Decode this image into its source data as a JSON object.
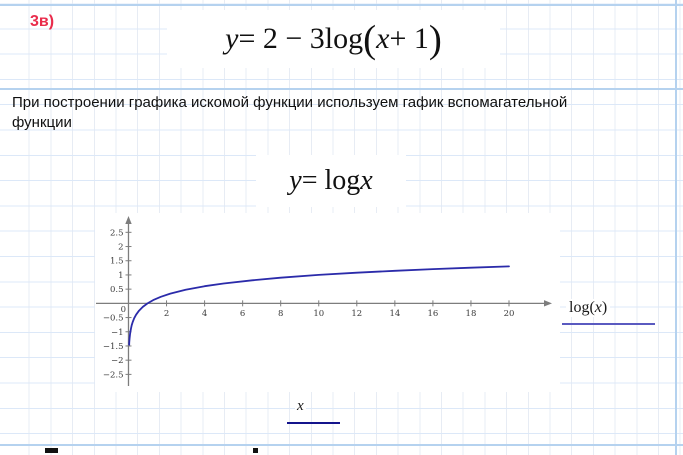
{
  "page": {
    "exercise_label": "3в)",
    "exercise_label_color": "#e92c4c",
    "paragraph": "При построении графика искомой функции используем гафик вспомагательной функции",
    "grid_strong_color": "#b5d2ef"
  },
  "formulas": {
    "main": [
      {
        "t": "y",
        "i": true
      },
      {
        "t": " = 2 − 3log"
      },
      {
        "t": "(",
        "big": true
      },
      {
        "t": "x",
        "i": true
      },
      {
        "t": " + 1"
      },
      {
        "t": ")",
        "big": true
      }
    ],
    "aux": [
      {
        "t": "y",
        "i": true
      },
      {
        "t": " = log "
      },
      {
        "t": "x",
        "i": true
      }
    ]
  },
  "legend": {
    "parts": [
      {
        "t": "log("
      },
      {
        "t": "x",
        "i": true
      },
      {
        "t": ")"
      }
    ],
    "underline_color": "#5a5ac0"
  },
  "x_axis_label": {
    "parts": [
      {
        "t": "x",
        "i": true
      }
    ],
    "underline_color": "#14148c"
  },
  "chart_data": {
    "type": "line",
    "title": "",
    "xlabel": "x",
    "ylabel": "",
    "legend_entry": "log(x)",
    "function": "y = log10(x)",
    "xlim": [
      -1.76,
      22.68
    ],
    "ylim": [
      -3.12,
      3.18
    ],
    "x_ticks": [
      2,
      4,
      6,
      8,
      10,
      12,
      14,
      16,
      18,
      20
    ],
    "y_ticks": [
      2.5,
      2,
      1.5,
      1,
      0.5,
      0,
      -0.5,
      -1,
      -1.5,
      -2,
      -2.5
    ],
    "grid": false,
    "axis_color": "#7d7d7d",
    "curve_color": "#2b2baa",
    "series": [
      {
        "name": "log(x)",
        "points": [
          [
            0.035,
            -1.456
          ],
          [
            0.04,
            -1.398
          ],
          [
            0.06,
            -1.222
          ],
          [
            0.08,
            -1.097
          ],
          [
            0.1,
            -1.0
          ],
          [
            0.13,
            -0.886
          ],
          [
            0.17,
            -0.77
          ],
          [
            0.22,
            -0.658
          ],
          [
            0.3,
            -0.523
          ],
          [
            0.4,
            -0.398
          ],
          [
            0.55,
            -0.26
          ],
          [
            0.75,
            -0.125
          ],
          [
            1,
            0
          ],
          [
            1.3,
            0.114
          ],
          [
            1.7,
            0.23
          ],
          [
            2.2,
            0.342
          ],
          [
            3,
            0.477
          ],
          [
            4,
            0.602
          ],
          [
            5,
            0.699
          ],
          [
            6.5,
            0.813
          ],
          [
            8,
            0.903
          ],
          [
            10,
            1.0
          ],
          [
            12,
            1.079
          ],
          [
            14,
            1.146
          ],
          [
            16,
            1.204
          ],
          [
            18,
            1.255
          ],
          [
            20,
            1.301
          ]
        ]
      }
    ]
  }
}
